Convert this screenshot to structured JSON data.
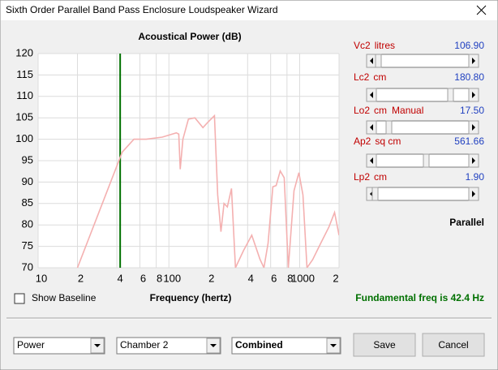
{
  "window": {
    "title": "Sixth Order Parallel Band Pass Enclosure Loudspeaker Wizard"
  },
  "chart_data": {
    "type": "line",
    "title": "Acoustical Power (dB)",
    "xlabel": "Frequency (hertz)",
    "xscale": "log",
    "xlim": [
      10,
      2000
    ],
    "ylim": [
      70,
      120
    ],
    "yticks": [
      70,
      75,
      80,
      85,
      90,
      95,
      100,
      105,
      110,
      115,
      120
    ],
    "xticks": [
      10,
      {
        "value": 20,
        "label": "2"
      },
      {
        "value": 40,
        "label": "4"
      },
      {
        "value": 60,
        "label": "6"
      },
      {
        "value": 80,
        "label": "8"
      },
      100,
      {
        "value": 200,
        "label": "2"
      },
      {
        "value": 400,
        "label": "4"
      },
      {
        "value": 600,
        "label": "6"
      },
      {
        "value": 800,
        "label": "8"
      },
      1000,
      {
        "value": 2000,
        "label": "2"
      }
    ],
    "grid": true,
    "color": "#f4b0b0",
    "x": [
      20,
      44,
      54,
      67,
      89,
      114,
      119,
      122,
      128,
      141,
      158,
      182,
      199,
      223,
      236,
      250,
      264,
      280,
      301,
      323,
      372,
      430,
      497,
      533,
      573,
      624,
      661,
      710,
      762,
      819,
      905,
      986,
      1059,
      1137,
      1257,
      1449,
      1673,
      1850,
      2000
    ],
    "values": [
      70,
      97,
      100,
      100,
      100.5,
      101.5,
      101.2,
      93,
      100,
      104.7,
      105,
      102.7,
      104,
      105.5,
      87,
      78.4,
      85,
      84.2,
      88.5,
      70,
      74,
      77.6,
      72,
      70,
      75.7,
      88.9,
      89.2,
      92.6,
      91,
      70,
      88,
      92.2,
      87,
      70,
      71.9,
      75.7,
      79.5,
      82.9,
      77.6
    ],
    "marker": {
      "x": 42.4,
      "color": "#007000"
    }
  },
  "sliders": [
    {
      "name": "Vc2",
      "unit": "litres",
      "value": "106.90"
    },
    {
      "name": "Lc2",
      "unit": "cm",
      "value": "180.80"
    },
    {
      "name": "Lo2",
      "unit": "cm",
      "note": "Manual",
      "value": "17.50"
    },
    {
      "name": "Ap2",
      "unit": "sq cm",
      "value": "561.66"
    },
    {
      "name": "Lp2",
      "unit": "cm",
      "value": "1.90"
    }
  ],
  "mode": "Parallel",
  "checkbox": "Show Baseline",
  "status": "Fundamental freq is 42.4 Hz",
  "dropdowns": [
    "Power",
    "Chamber 2",
    "Combined"
  ],
  "buttons": [
    "Save",
    "Cancel"
  ]
}
